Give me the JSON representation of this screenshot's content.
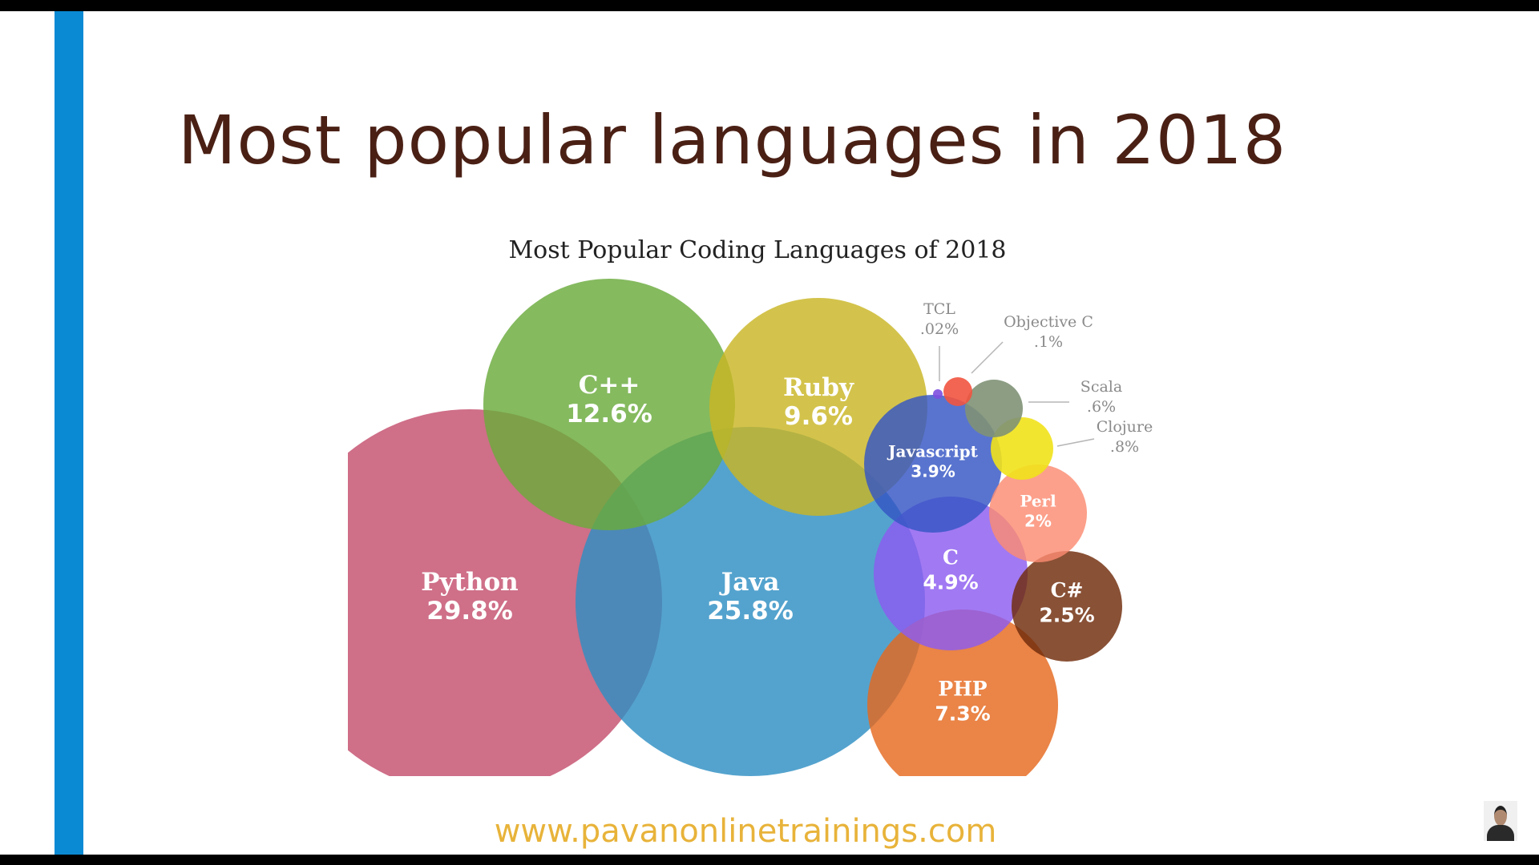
{
  "slide": {
    "title": "Most popular languages in 2018",
    "website": "www.pavanonlinetrainings.com",
    "accent_color": "#0b8ad4",
    "title_color": "#4a2015"
  },
  "chart_data": {
    "type": "bubble",
    "title": "Most Popular Coding Languages of 2018",
    "unit": "%",
    "series": [
      {
        "name": "Python",
        "label": "29.8%",
        "value": 29.8,
        "color": "#c44f6e"
      },
      {
        "name": "Java",
        "label": "25.8%",
        "value": 25.8,
        "color": "#2e8fc3"
      },
      {
        "name": "C++",
        "label": "12.6%",
        "value": 12.6,
        "color": "#6aab3c"
      },
      {
        "name": "Ruby",
        "label": "9.6%",
        "value": 9.6,
        "color": "#c9b624"
      },
      {
        "name": "PHP",
        "label": "7.3%",
        "value": 7.3,
        "color": "#e5691f"
      },
      {
        "name": "C",
        "label": "4.9%",
        "value": 4.9,
        "color": "#8c5cf0"
      },
      {
        "name": "Javascript",
        "label": "3.9%",
        "value": 3.9,
        "color": "#3556c4"
      },
      {
        "name": "C#",
        "label": "2.5%",
        "value": 2.5,
        "color": "#6f2b0a"
      },
      {
        "name": "Perl",
        "label": "2%",
        "value": 2,
        "color": "#fb8b72"
      },
      {
        "name": "Clojure",
        "label": ".8%",
        "value": 0.8,
        "color": "#f1e21a"
      },
      {
        "name": "Scala",
        "label": ".6%",
        "value": 0.6,
        "color": "#809276"
      },
      {
        "name": "Objective C",
        "label": ".1%",
        "value": 0.1,
        "color": "#f1543f"
      },
      {
        "name": "TCL",
        "label": ".02%",
        "value": 0.02,
        "color": "#7d4fe0"
      }
    ]
  }
}
